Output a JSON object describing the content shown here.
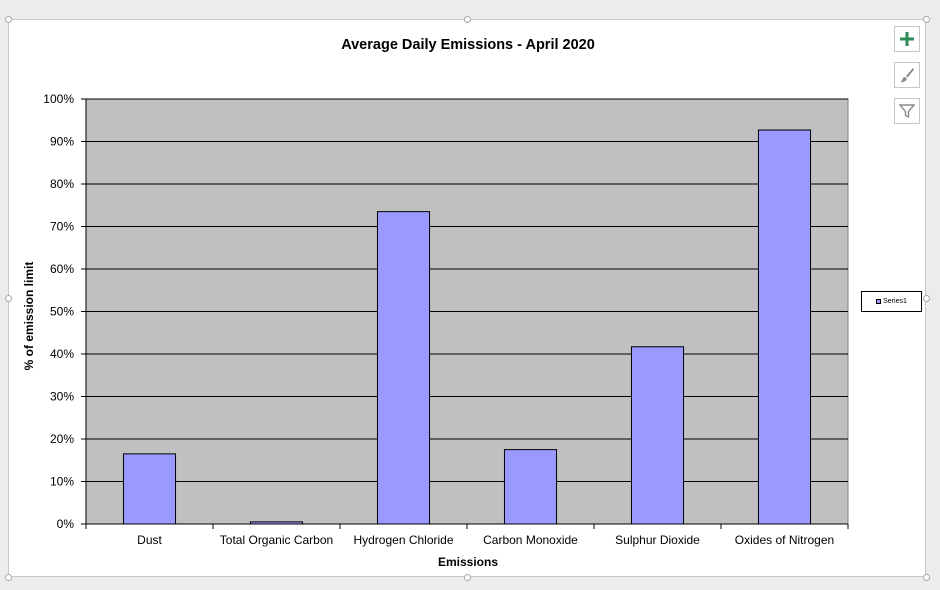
{
  "toolbar": {
    "add_element_icon": "plus-icon",
    "style_icon": "brush-icon",
    "filter_icon": "funnel-icon"
  },
  "chart_data": {
    "type": "bar",
    "title": "Average Daily Emissions - April 2020",
    "xlabel": "Emissions",
    "ylabel": "% of emission limit",
    "categories": [
      "Dust",
      "Total Organic Carbon",
      "Hydrogen Chloride",
      "Carbon Monoxide",
      "Sulphur Dioxide",
      "Oxides of Nitrogen"
    ],
    "series": [
      {
        "name": "Series1",
        "values": [
          16.5,
          0.5,
          73.5,
          17.5,
          41.7,
          92.7
        ]
      }
    ],
    "ylim": [
      0,
      100
    ],
    "yticks": [
      "0%",
      "10%",
      "20%",
      "30%",
      "40%",
      "50%",
      "60%",
      "70%",
      "80%",
      "90%",
      "100%"
    ],
    "grid": true,
    "legend": "right",
    "colors": {
      "bar": "#9999ff",
      "plot_bg": "#c0c0c0",
      "grid": "#000000"
    }
  }
}
